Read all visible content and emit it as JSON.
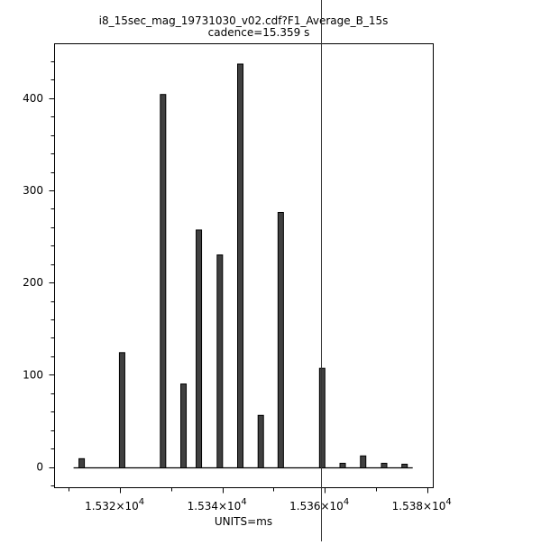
{
  "chart_data": {
    "type": "bar",
    "title": "i8_15sec_mag_19731030_v02.cdf?F1_Average_B_15s",
    "subtitle": "cadence=15.359 s",
    "xlabel": "UNITS=ms",
    "ylabel": "",
    "xlim": [
      15307.2,
      15381.2
    ],
    "ylim": [
      -22.5,
      459
    ],
    "x_ticks": [
      15320,
      15340,
      15360,
      15380
    ],
    "x_tick_labels": [
      {
        "mantissa": "1.532×10",
        "exp": "4"
      },
      {
        "mantissa": "1.534×10",
        "exp": "4"
      },
      {
        "mantissa": "1.536×10",
        "exp": "4"
      },
      {
        "mantissa": "1.538×10",
        "exp": "4"
      }
    ],
    "y_ticks": [
      0,
      100,
      200,
      300,
      400
    ],
    "y_tick_labels": [
      "0",
      "100",
      "200",
      "300",
      "400"
    ],
    "grid": false,
    "bar_color": "#404040",
    "cursor_x": 15359.3,
    "x": [
      15312.5,
      15320.4,
      15328.4,
      15332.4,
      15335.4,
      15339.5,
      15343.5,
      15347.5,
      15351.4,
      15359.5,
      15363.5,
      15367.5,
      15371.6,
      15375.6
    ],
    "values": [
      9,
      124,
      404,
      90,
      257,
      230,
      437,
      56,
      276,
      107,
      4,
      12,
      4,
      3
    ]
  }
}
